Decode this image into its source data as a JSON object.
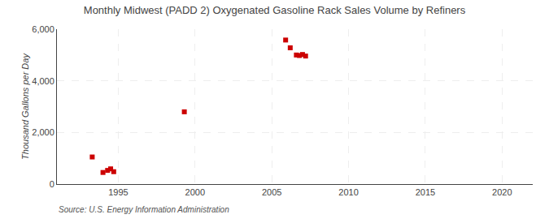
{
  "chart_data": {
    "type": "scatter",
    "title": "Monthly Midwest (PADD 2) Oxygenated Gasoline Rack Sales Volume by Refiners",
    "ylabel": "Thousand Gallons per Day",
    "annotations": [
      "Source: U.S. Energy Information Administration"
    ],
    "x": [
      1993.3,
      1994.0,
      1994.3,
      1994.5,
      1994.7,
      1999.3,
      2005.9,
      2006.2,
      2006.6,
      2006.8,
      2007.0,
      2007.2
    ],
    "values": [
      1050,
      450,
      530,
      590,
      480,
      2800,
      5580,
      5280,
      5000,
      4980,
      5020,
      4960
    ],
    "color": "#cc0000",
    "marker": "square",
    "xlim": [
      1991,
      2022
    ],
    "ylim": [
      0,
      6000
    ],
    "xticks": [
      1995,
      2000,
      2005,
      2010,
      2015,
      2020
    ],
    "yticks": [
      0,
      {
        "value": 2000,
        "label": "2,000"
      },
      {
        "value": 4000,
        "label": "4,000"
      },
      {
        "value": 6000,
        "label": "6,000"
      }
    ],
    "grid": true
  }
}
